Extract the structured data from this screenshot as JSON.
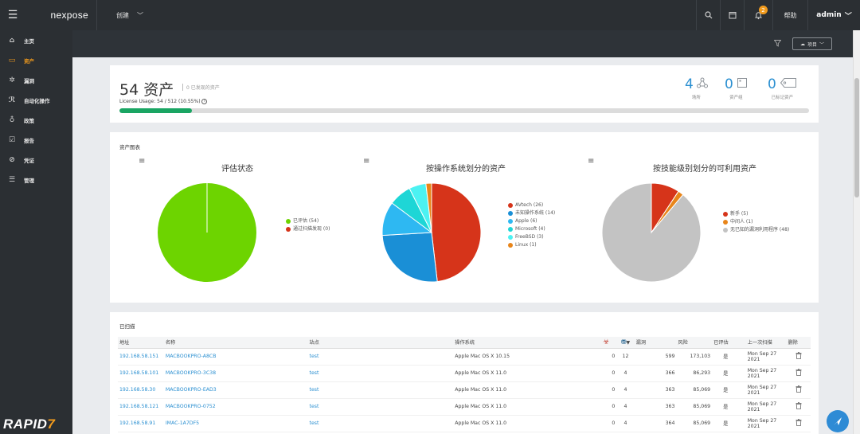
{
  "topbar": {
    "logo": "nexpose",
    "create_label": "创建",
    "help_label": "帮助",
    "user": "admin",
    "notifications": "2"
  },
  "sidebar": {
    "items": [
      {
        "label": "主页",
        "icon": "home-icon",
        "glyph": "⌂"
      },
      {
        "label": "资产",
        "icon": "monitor-icon",
        "glyph": "▭"
      },
      {
        "label": "漏洞",
        "icon": "bug-icon",
        "glyph": "✲"
      },
      {
        "label": "自动化操作",
        "icon": "automation-icon",
        "glyph": "ℛ"
      },
      {
        "label": "政策",
        "icon": "badge-icon",
        "glyph": "♁"
      },
      {
        "label": "报告",
        "icon": "report-icon",
        "glyph": "☑"
      },
      {
        "label": "凭证",
        "icon": "credential-icon",
        "glyph": "⊘"
      },
      {
        "label": "管理",
        "icon": "admin-icon",
        "glyph": "☰"
      }
    ],
    "brand_main": "RAPID",
    "brand_accent": "7"
  },
  "strip": {
    "project_label": "项目"
  },
  "summary": {
    "count": "54 资产",
    "discovered": "0 已发现的资产",
    "license": "License Usage: 54 / 512 (10.55%)",
    "license_fraction": 0.1055,
    "stats": [
      {
        "value": "4",
        "label": "场所"
      },
      {
        "value": "0",
        "label": "资产组"
      },
      {
        "value": "0",
        "label": "已标记资产"
      }
    ]
  },
  "charts_card": {
    "title": "资产图表"
  },
  "chart_data": [
    {
      "type": "pie",
      "title": "评估状态",
      "labels": [
        "已评估 (54)",
        "通过扫描发现 (0)"
      ],
      "values": [
        54,
        0
      ],
      "colors": [
        "#6dd400",
        "#d6341a"
      ]
    },
    {
      "type": "pie",
      "title": "按操作系统划分的资产",
      "labels": [
        "AVtech (26)",
        "未知操作系统 (14)",
        "Apple (6)",
        "Microsoft (4)",
        "FreeBSD (3)",
        "Linux (1)"
      ],
      "values": [
        26,
        14,
        6,
        4,
        3,
        1
      ],
      "colors": [
        "#d6341a",
        "#1a8fd6",
        "#2eb8f2",
        "#1ed6d6",
        "#4cf2f2",
        "#e8851a"
      ]
    },
    {
      "type": "pie",
      "title": "按技能级别划分的可利用资产",
      "labels": [
        "新手 (5)",
        "中间人 (1)",
        "无已知的漏洞利用程序 (48)"
      ],
      "values": [
        5,
        1,
        48
      ],
      "colors": [
        "#d6341a",
        "#e8851a",
        "#c3c3c3"
      ]
    }
  ],
  "table": {
    "title": "已扫描",
    "headers": [
      "地址",
      "名称",
      "站点",
      "操作系统",
      "",
      "",
      "漏洞",
      "风险",
      "已评估",
      "上一次扫描",
      "删除"
    ],
    "rows": [
      {
        "address": "192.168.58.151",
        "name": "MACBOOKPRO-A8CB",
        "site": "test",
        "os": "Apple Mac OS X 10.15",
        "malware": "0",
        "exploits": "12",
        "vulns": "599",
        "risk": "173,103",
        "assessed": "是",
        "last_scan": "Mon Sep 27 2021"
      },
      {
        "address": "192.168.58.101",
        "name": "MACBOOKPRO-3C38",
        "site": "test",
        "os": "Apple Mac OS X 11.0",
        "malware": "0",
        "exploits": "4",
        "vulns": "366",
        "risk": "86,293",
        "assessed": "是",
        "last_scan": "Mon Sep 27 2021"
      },
      {
        "address": "192.168.58.30",
        "name": "MACBOOKPRO-EAD3",
        "site": "test",
        "os": "Apple Mac OS X 11.0",
        "malware": "0",
        "exploits": "4",
        "vulns": "363",
        "risk": "85,069",
        "assessed": "是",
        "last_scan": "Mon Sep 27 2021"
      },
      {
        "address": "192.168.58.121",
        "name": "MACBOOKPRO-0752",
        "site": "test",
        "os": "Apple Mac OS X 11.0",
        "malware": "0",
        "exploits": "4",
        "vulns": "363",
        "risk": "85,069",
        "assessed": "是",
        "last_scan": "Mon Sep 27 2021"
      },
      {
        "address": "192.168.58.91",
        "name": "IMAC-1A7DF5",
        "site": "test",
        "os": "Apple Mac OS X 11.0",
        "malware": "0",
        "exploits": "4",
        "vulns": "364",
        "risk": "85,069",
        "assessed": "是",
        "last_scan": "Mon Sep 27 2021"
      }
    ]
  }
}
